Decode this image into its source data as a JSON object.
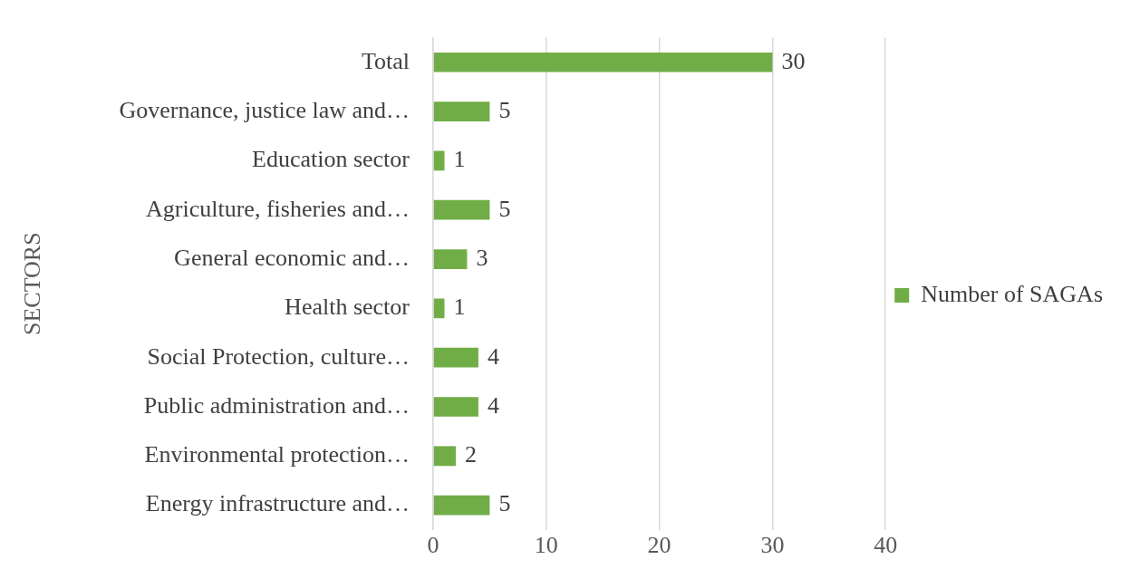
{
  "chart_data": {
    "type": "bar",
    "orientation": "horizontal",
    "ylabel": "SECTORS",
    "categories": [
      "Total",
      "Governance, justice law and…",
      "Education sector",
      "Agriculture, fisheries and…",
      "General economic and…",
      "Health sector",
      "Social Protection, culture…",
      "Public administration and…",
      "Environmental protection…",
      "Energy infrastructure and…"
    ],
    "series": [
      {
        "name": "Number of SAGAs",
        "color": "#70ad47",
        "values": [
          30,
          5,
          1,
          5,
          3,
          1,
          4,
          4,
          2,
          5
        ]
      }
    ],
    "xlim": [
      0,
      40
    ],
    "xticks": [
      0,
      10,
      20,
      30,
      40
    ],
    "grid": "x",
    "legend": "right",
    "data_labels": true
  }
}
